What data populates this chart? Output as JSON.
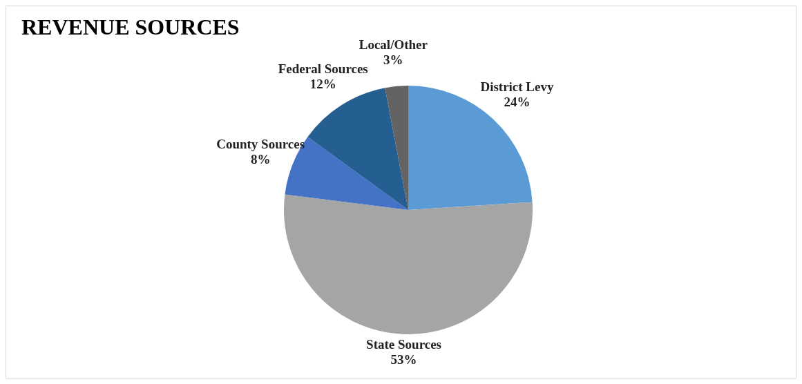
{
  "chart_data": {
    "type": "pie",
    "title": "REVENUE SOURCES",
    "categories": [
      "District Levy",
      "State Sources",
      "County Sources",
      "Federal Sources",
      "Local/Other"
    ],
    "values": [
      24,
      53,
      8,
      12,
      3
    ],
    "value_labels": [
      "24%",
      "53%",
      "8%",
      "12%",
      "3%"
    ],
    "colors": [
      "#5b9bd5",
      "#a5a5a5",
      "#4472c4",
      "#255e91",
      "#636363"
    ]
  }
}
